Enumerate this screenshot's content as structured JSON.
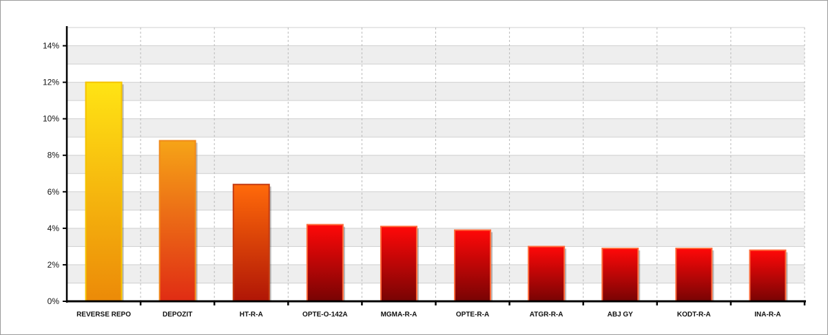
{
  "chart_data": {
    "type": "bar",
    "categories": [
      "REVERSE REPO",
      "DEPOZIT",
      "HT-R-A",
      "OPTE-O-142A",
      "MGMA-R-A",
      "OPTE-R-A",
      "ATGR-R-A",
      "ABJ GY",
      "KODT-R-A",
      "INA-R-A"
    ],
    "values": [
      12.0,
      8.8,
      6.4,
      4.2,
      4.1,
      3.9,
      3.0,
      2.9,
      2.9,
      2.8
    ],
    "ylim": [
      0,
      15
    ],
    "yticks": [
      0,
      2,
      4,
      6,
      8,
      10,
      12,
      14
    ],
    "ytick_labels": [
      "0%",
      "2%",
      "4%",
      "6%",
      "8%",
      "10%",
      "12%",
      "14%"
    ],
    "title": "",
    "xlabel": "",
    "ylabel": "",
    "grid": true,
    "legend": "none",
    "colors": {
      "bar_fills": [
        [
          "#ffe414",
          "#ec8a08"
        ],
        [
          "#f6a417",
          "#e02c14"
        ],
        [
          "#ff6a0a",
          "#b01606"
        ],
        [
          "#ff0808",
          "#780404"
        ],
        [
          "#ff0808",
          "#780404"
        ],
        [
          "#ff0808",
          "#780404"
        ],
        [
          "#ff0808",
          "#780404"
        ],
        [
          "#ff0808",
          "#780404"
        ],
        [
          "#ff0808",
          "#780404"
        ],
        [
          "#ff0808",
          "#780404"
        ]
      ],
      "bar_borders": [
        "#f5c300",
        "#f08a1c",
        "#c43a10",
        "#ff6a3a",
        "#ff6a3a",
        "#ff6a3a",
        "#ff6a3a",
        "#ff6a3a",
        "#ff6a3a",
        "#ff6a3a"
      ],
      "band_light": "#eeeeee",
      "band_dark": "#ffffff",
      "axis": "#000000"
    }
  }
}
